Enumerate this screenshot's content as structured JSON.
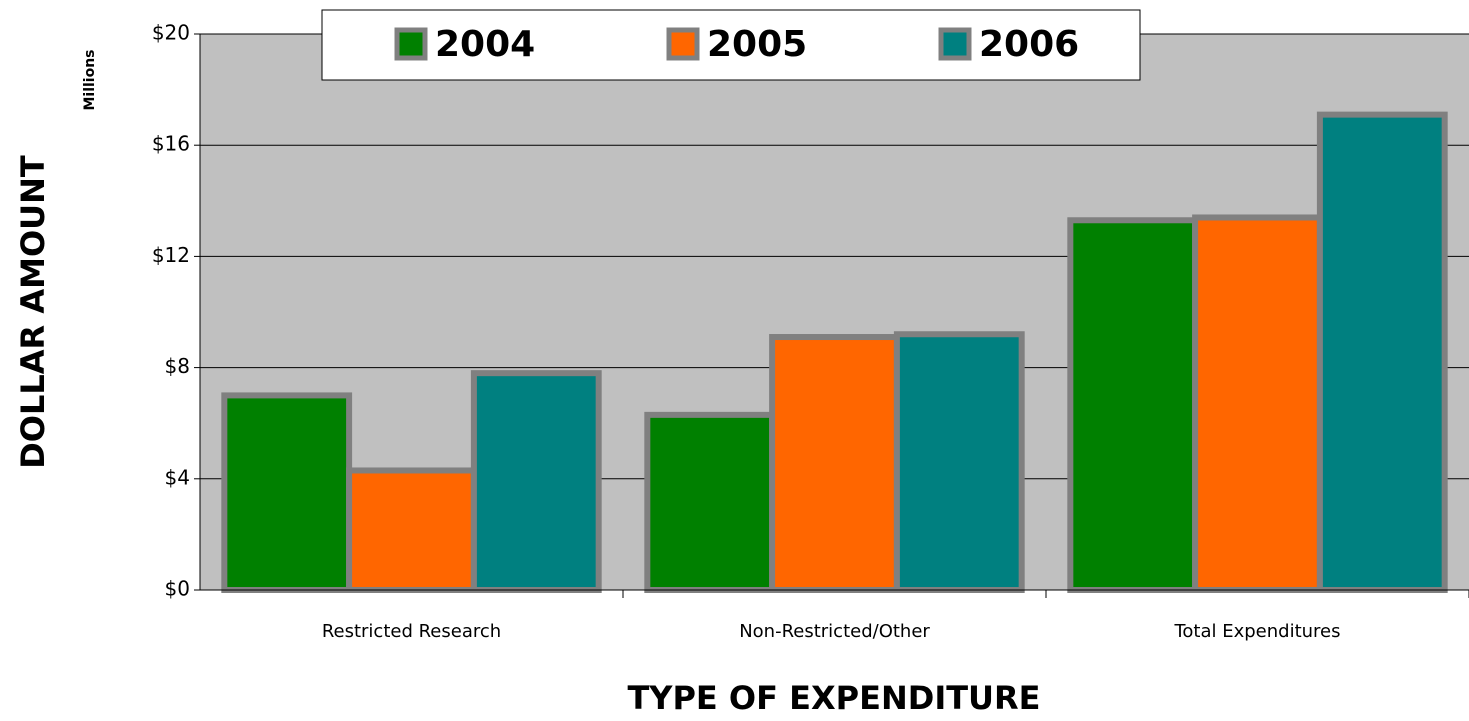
{
  "chart_data": {
    "type": "bar",
    "categories": [
      "Restricted Research",
      "Non-Restricted/Other",
      "Total Expenditures"
    ],
    "series": [
      {
        "name": "2004",
        "color": "#008000",
        "values": [
          7.0,
          6.3,
          13.3
        ]
      },
      {
        "name": "2005",
        "color": "#ff6600",
        "values": [
          4.3,
          9.1,
          13.4
        ]
      },
      {
        "name": "2006",
        "color": "#008080",
        "values": [
          7.8,
          9.2,
          17.1
        ]
      }
    ],
    "ylim": [
      0,
      20
    ],
    "yticks": [
      {
        "value": 0,
        "label": "$0"
      },
      {
        "value": 4,
        "label": "$4"
      },
      {
        "value": 8,
        "label": "$8"
      },
      {
        "value": 12,
        "label": "$12"
      },
      {
        "value": 16,
        "label": "$16"
      },
      {
        "value": 20,
        "label": "$20"
      }
    ],
    "y_unit_label": "Millions",
    "x_axis_label": "TYPE OF EXPENDITURE",
    "y_axis_label": "DOLLAR AMOUNT",
    "grid": true,
    "legend": "top"
  }
}
